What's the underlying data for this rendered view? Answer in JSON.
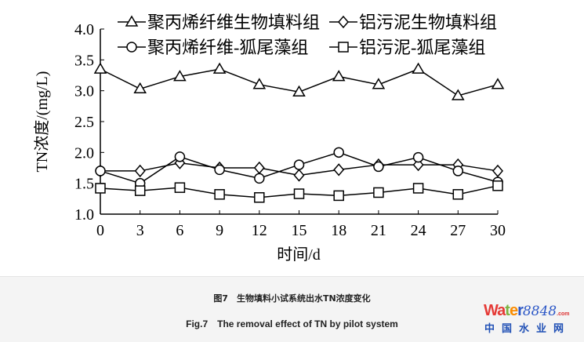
{
  "chart_data": {
    "type": "line",
    "xlabel": "时间/d",
    "ylabel": "TN浓度/(mg/L)",
    "x": [
      0,
      3,
      6,
      9,
      12,
      15,
      18,
      21,
      24,
      27,
      30
    ],
    "xticks": [
      "0",
      "3",
      "6",
      "9",
      "12",
      "15",
      "18",
      "21",
      "24",
      "27",
      "30"
    ],
    "yticks": [
      "1.0",
      "1.5",
      "2.0",
      "2.5",
      "3.0",
      "3.5",
      "4.0"
    ],
    "ylim": [
      1.0,
      4.0
    ],
    "xlim": [
      0,
      30
    ],
    "grid": false,
    "legend_placement": "top",
    "series": [
      {
        "name": "聚丙烯纤维生物填料组",
        "marker": "triangle",
        "values": [
          3.35,
          3.03,
          3.23,
          3.35,
          3.1,
          2.98,
          3.23,
          3.1,
          3.35,
          2.92,
          3.1
        ]
      },
      {
        "name": "铝污泥生物填料组",
        "marker": "diamond",
        "values": [
          1.7,
          1.7,
          1.83,
          1.75,
          1.75,
          1.63,
          1.72,
          1.8,
          1.8,
          1.8,
          1.7
        ]
      },
      {
        "name": "聚丙烯纤维-狐尾藻组",
        "marker": "circle",
        "values": [
          1.7,
          1.5,
          1.93,
          1.72,
          1.58,
          1.8,
          2.0,
          1.77,
          1.92,
          1.7,
          1.52
        ]
      },
      {
        "name": "铝污泥-狐尾藻组",
        "marker": "square",
        "values": [
          1.42,
          1.38,
          1.43,
          1.32,
          1.27,
          1.33,
          1.3,
          1.35,
          1.42,
          1.32,
          1.46
        ]
      }
    ]
  },
  "caption": {
    "cn": "图7　生物填料小试系统出水TN浓度变化",
    "en": "Fig.7　The removal effect of TN by pilot system"
  },
  "logo": {
    "word": "Water",
    "num": "8848",
    "com": ".com",
    "cn": "中国水业网",
    "colors": [
      "#e53935",
      "#7cb342",
      "#fb8c00",
      "#2a56c6"
    ]
  }
}
